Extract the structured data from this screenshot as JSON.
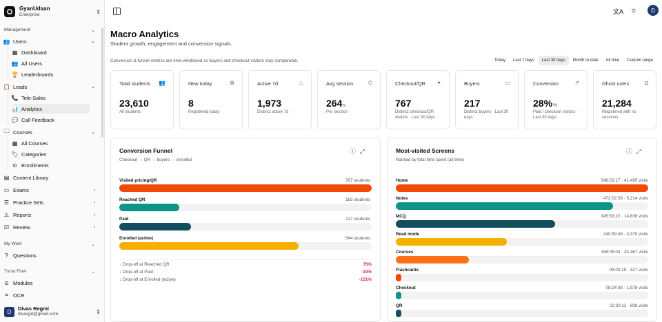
{
  "org": {
    "name": "GyanUdaan",
    "plan": "Enterprise"
  },
  "sidebar": {
    "management_label": "Management",
    "users": {
      "label": "Users",
      "children": [
        "Dashboard",
        "All Users",
        "Leaderboards"
      ]
    },
    "leads": {
      "label": "Leads",
      "children": [
        "Tele-Sales",
        "Analytics",
        "Call Feedback"
      ]
    },
    "courses": {
      "label": "Courses",
      "children": [
        "All Courses",
        "Categories",
        "Enrollments"
      ]
    },
    "content_library": "Content Library",
    "exams": "Exams",
    "practice_sets": "Practice Sets",
    "reports": "Reports",
    "review": "Review",
    "my_work_label": "My Work",
    "questions": "Questions",
    "turso_flow_label": "Turso Flow",
    "modules": "Modules",
    "ocr": "OCR"
  },
  "user": {
    "initial": "D",
    "name": "Divas Regmi",
    "email": "divasjpt@gmail.com"
  },
  "page": {
    "title": "Macro Analytics",
    "subtitle": "Student growth, engagement and conversion signals.",
    "note": "Conversion & funnel metrics are time-windowed so buyers and checkout visitors stay comparable."
  },
  "ranges": [
    "Today",
    "Last 7 days",
    "Last 30 days",
    "Month to date",
    "All time",
    "Custom range"
  ],
  "active_range": "Last 30 days",
  "cards": [
    {
      "title": "Total students",
      "icon": "users-icon",
      "value": "23,610",
      "unit": "",
      "desc": "All students"
    },
    {
      "title": "New today",
      "icon": "user-plus-icon",
      "value": "8",
      "unit": "",
      "desc": "Registered today"
    },
    {
      "title": "Active 7d",
      "icon": "flame-icon",
      "value": "1,973",
      "unit": "",
      "desc": "Distinct active 7d"
    },
    {
      "title": "Avg session",
      "icon": "timer-icon",
      "value": "264",
      "unit": "s",
      "desc": "Per session"
    },
    {
      "title": "Checkout/QR",
      "icon": "pointer-icon",
      "value": "767",
      "unit": "",
      "desc": "Distinct checkout/QR visitors · Last 30 days"
    },
    {
      "title": "Buyers",
      "icon": "ticket-icon",
      "value": "217",
      "unit": "",
      "desc": "Distinct buyers · Last 30 days"
    },
    {
      "title": "Conversion",
      "icon": "trending-up-icon",
      "value": "28%",
      "unit": "%",
      "desc": "Paid / checkout visitors · Last 30 days"
    },
    {
      "title": "Ghost users",
      "icon": "ghost-icon",
      "value": "21,284",
      "unit": "",
      "desc": "Registered with no sessions"
    }
  ],
  "funnel": {
    "title": "Conversion Funnel",
    "subtitle": "Checkout → QR → buyers → enrolled",
    "max": 767,
    "steps": [
      {
        "label": "Visited pricing/QR",
        "value": 767,
        "value_label": "767 students",
        "color": "#f04a06"
      },
      {
        "label": "Reached QR",
        "value": 183,
        "value_label": "183 students",
        "color": "#0d9488"
      },
      {
        "label": "Paid",
        "value": 217,
        "value_label": "217 students",
        "color": "#134e5e"
      },
      {
        "label": "Enrolled (active)",
        "value": 544,
        "value_label": "544 students",
        "color": "#f5b000"
      }
    ],
    "dropoffs": [
      {
        "label": "Drop-off at Reached QR",
        "value": "76%"
      },
      {
        "label": "Drop-off at Paid",
        "value": "-19%"
      },
      {
        "label": "Drop-off at Enrolled (active)",
        "value": "-151%"
      }
    ]
  },
  "screens": {
    "title": "Most-visited Screens",
    "subtitle": "Ranked by total time spent (all-time)",
    "items": [
      {
        "label": "Home",
        "value_label": "548:53:17 · 41,495 visits",
        "fraction": 1.0,
        "color": "#f04a06"
      },
      {
        "label": "Notes",
        "value_label": "472:02:59 · 5,214 visits",
        "fraction": 0.86,
        "color": "#0d9488"
      },
      {
        "label": "MCQ",
        "value_label": "345:53:22 · 14,836 visits",
        "fraction": 0.63,
        "color": "#134e5e"
      },
      {
        "label": "Read mode",
        "value_label": "240:59:49 · 3,370 visits",
        "fraction": 0.44,
        "color": "#f5b000"
      },
      {
        "label": "Courses",
        "value_label": "158:05:03 · 34,367 visits",
        "fraction": 0.29,
        "color": "#f97316"
      },
      {
        "label": "Flashcards",
        "value_label": "09:03:19 · 327 visits",
        "fraction": 0.017,
        "color": "#f04a06"
      },
      {
        "label": "Checkout",
        "value_label": "08:24:08 · 1,978 visits",
        "fraction": 0.015,
        "color": "#0d9488"
      },
      {
        "label": "QR",
        "value_label": "02:30:11 · 608 visits",
        "fraction": 0.005,
        "color": "#134e5e"
      }
    ]
  }
}
